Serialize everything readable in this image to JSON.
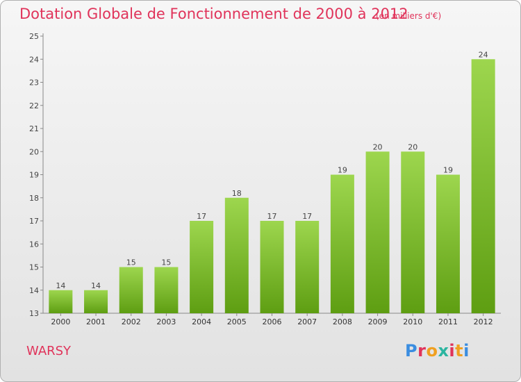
{
  "title": "Dotation Globale de Fonctionnement de 2000 à 2012",
  "unit_note": "(en milliers d'€)",
  "commune": "WARSY",
  "logo": {
    "text": "Proxiti",
    "letter_colors": [
      "#3a8de0",
      "#e0335a",
      "#f0a020",
      "#2bb5a0",
      "#e0335a",
      "#f0a020",
      "#3a8de0"
    ]
  },
  "colors": {
    "title": "#e0335a",
    "bar_top": "#9dd64e",
    "bar_bottom": "#5e9e12"
  },
  "chart_data": {
    "type": "bar",
    "title": "Dotation Globale de Fonctionnement de 2000 à 2012",
    "subtitle": "(en milliers d'€)",
    "categories": [
      "2000",
      "2001",
      "2002",
      "2003",
      "2004",
      "2005",
      "2006",
      "2007",
      "2008",
      "2009",
      "2010",
      "2011",
      "2012"
    ],
    "values": [
      14,
      14,
      15,
      15,
      17,
      18,
      17,
      17,
      19,
      20,
      20,
      19,
      24
    ],
    "ylim": [
      13,
      25
    ],
    "yticks": [
      13,
      14,
      15,
      16,
      17,
      18,
      19,
      20,
      21,
      22,
      23,
      24,
      25
    ],
    "grid": false,
    "data_labels": true
  }
}
